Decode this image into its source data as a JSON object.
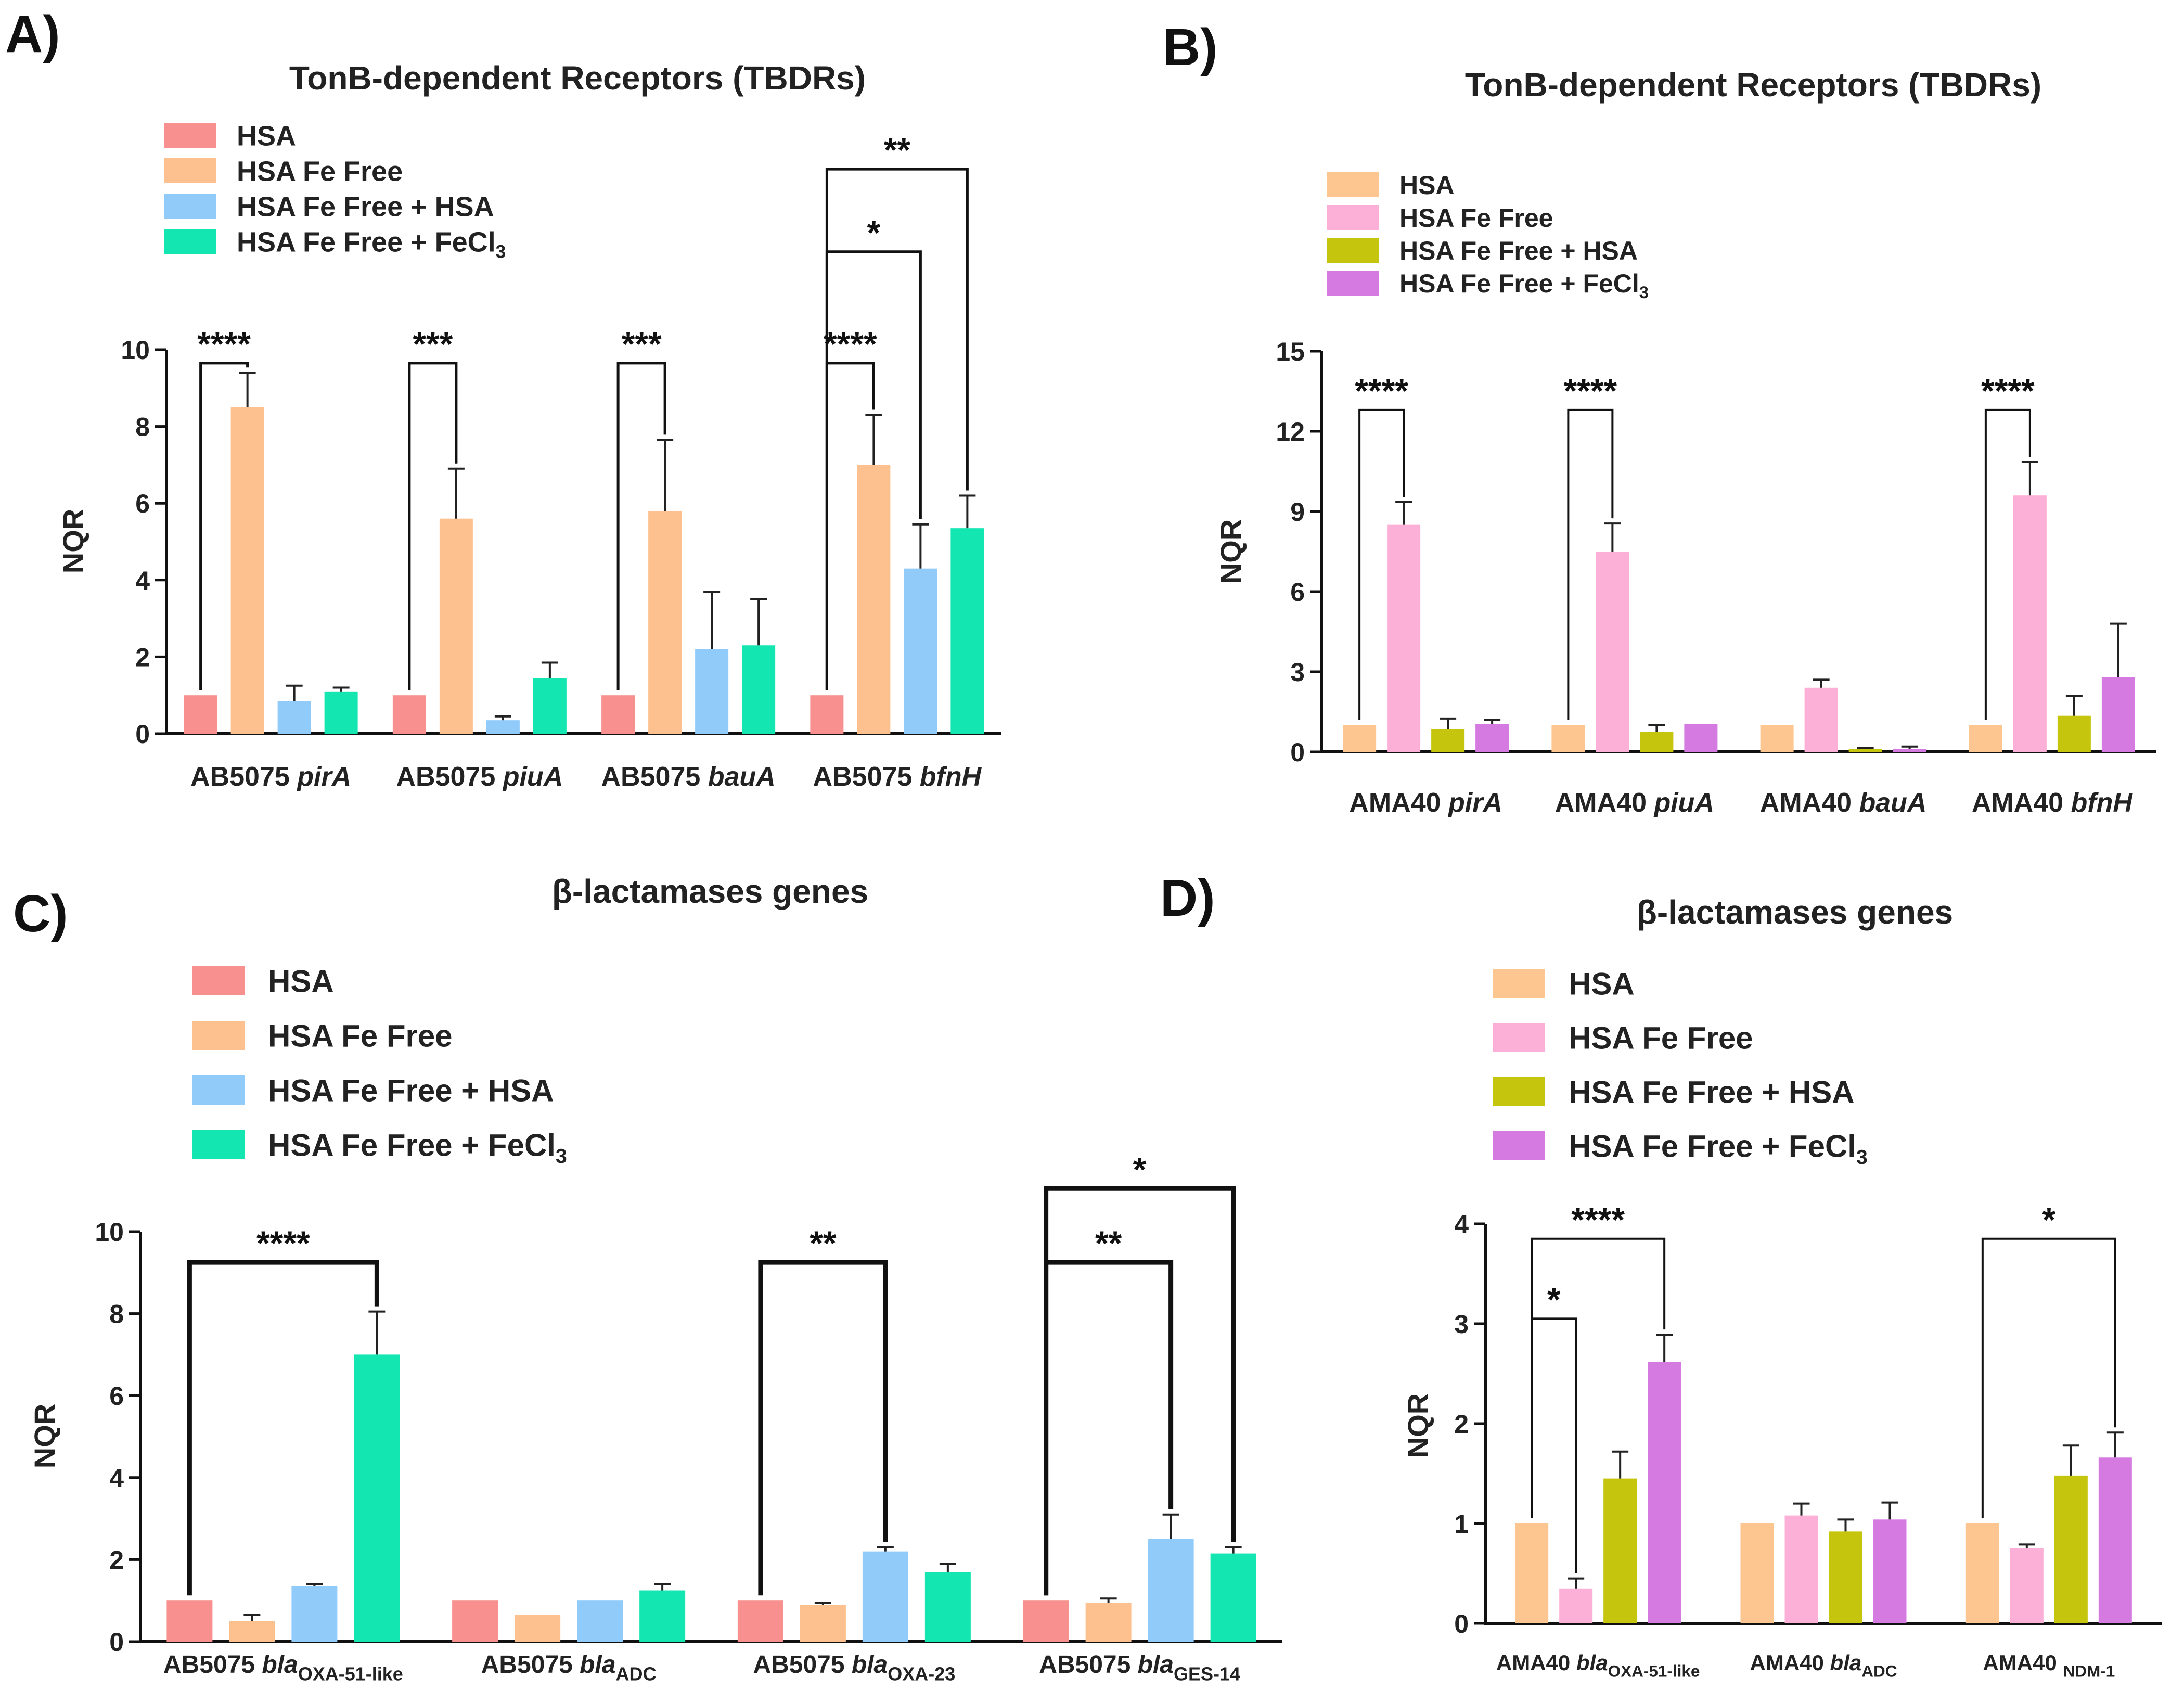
{
  "chart_data": [
    {
      "panel": "A)",
      "type": "bar",
      "title": "TonB-dependent Receptors (TBDRs)",
      "ylabel": "NQR",
      "ylim": [
        0,
        10
      ],
      "yticks": [
        "0",
        "2",
        "4",
        "6",
        "8",
        "10"
      ],
      "categories": [
        {
          "prefix": "AB5075 ",
          "gene": "pirA",
          "sub": ""
        },
        {
          "prefix": "AB5075 ",
          "gene": "piuA",
          "sub": ""
        },
        {
          "prefix": "AB5075 ",
          "gene": "bauA",
          "sub": ""
        },
        {
          "prefix": "AB5075 ",
          "gene": "bfnH",
          "sub": ""
        }
      ],
      "legend": [
        "HSA",
        "HSA Fe Free",
        "HSA Fe Free + HSA",
        "HSA Fe Free + FeCl"
      ],
      "legend_sub": "3",
      "colors": [
        "#F7908E",
        "#FDC08F",
        "#91CBFA",
        "#14E6B1"
      ],
      "series": [
        {
          "name": "HSA",
          "values": [
            1.0,
            1.0,
            1.0,
            1.0
          ],
          "errors": [
            0,
            0,
            0,
            0
          ]
        },
        {
          "name": "HSA Fe Free",
          "values": [
            8.5,
            5.6,
            5.8,
            7.0
          ],
          "errors": [
            0.9,
            1.3,
            1.85,
            1.3
          ]
        },
        {
          "name": "HSA Fe Free + HSA",
          "values": [
            0.85,
            0.35,
            2.2,
            4.3
          ],
          "errors": [
            0.4,
            0.1,
            1.5,
            1.15
          ]
        },
        {
          "name": "HSA Fe Free + FeCl3",
          "values": [
            1.1,
            1.45,
            2.3,
            5.35
          ],
          "errors": [
            0.1,
            0.4,
            1.2,
            0.85
          ]
        }
      ],
      "significance": [
        {
          "cat": 0,
          "from": 0,
          "to": 1,
          "label": "****",
          "level": 9.65
        },
        {
          "cat": 1,
          "from": 0,
          "to": 1,
          "label": "***",
          "level": 9.65
        },
        {
          "cat": 2,
          "from": 0,
          "to": 1,
          "label": "***",
          "level": 9.65
        },
        {
          "cat": 3,
          "from": 0,
          "to": 1,
          "label": "****",
          "level": 9.65
        },
        {
          "cat": 3,
          "from": 0,
          "to": 2,
          "label": "*",
          "level": 12.55
        },
        {
          "cat": 3,
          "from": 0,
          "to": 3,
          "label": "**",
          "level": 14.7
        }
      ]
    },
    {
      "panel": "B)",
      "type": "bar",
      "title": "TonB-dependent Receptors (TBDRs)",
      "ylabel": "NQR",
      "ylim": [
        0,
        15
      ],
      "yticks": [
        "0",
        "3",
        "6",
        "9",
        "12",
        "15"
      ],
      "categories": [
        {
          "prefix": "AMA40 ",
          "gene": "pirA",
          "sub": ""
        },
        {
          "prefix": "AMA40 ",
          "gene": "piuA",
          "sub": ""
        },
        {
          "prefix": "AMA40 ",
          "gene": "bauA",
          "sub": ""
        },
        {
          "prefix": "AMA40 ",
          "gene": "bfnH",
          "sub": ""
        }
      ],
      "legend": [
        "HSA",
        "HSA Fe Free",
        "HSA Fe Free + HSA",
        "HSA Fe Free + FeCl"
      ],
      "legend_sub": "3",
      "colors": [
        "#FDC590",
        "#FDB0D7",
        "#C5C50E",
        "#D57AE0"
      ],
      "series": [
        {
          "name": "HSA",
          "values": [
            1.0,
            1.0,
            1.0,
            1.0
          ],
          "errors": [
            0,
            0,
            0,
            0
          ]
        },
        {
          "name": "HSA Fe Free",
          "values": [
            8.5,
            7.5,
            2.4,
            9.6
          ],
          "errors": [
            0.85,
            1.05,
            0.3,
            1.25
          ]
        },
        {
          "name": "HSA Fe Free + HSA",
          "values": [
            0.85,
            0.75,
            0.1,
            1.35
          ],
          "errors": [
            0.4,
            0.25,
            0.05,
            0.75
          ]
        },
        {
          "name": "HSA Fe Free + FeCl3",
          "values": [
            1.05,
            1.05,
            0.1,
            2.8
          ],
          "errors": [
            0.15,
            0,
            0.1,
            2.0
          ]
        }
      ],
      "significance": [
        {
          "cat": 0,
          "from": 0,
          "to": 1,
          "label": "****",
          "level": 12.8
        },
        {
          "cat": 1,
          "from": 0,
          "to": 1,
          "label": "****",
          "level": 12.8
        },
        {
          "cat": 3,
          "from": 0,
          "to": 1,
          "label": "****",
          "level": 12.8
        }
      ]
    },
    {
      "panel": "C)",
      "type": "bar",
      "title": "β-lactamases genes",
      "ylabel": "NQR",
      "ylim": [
        0,
        10
      ],
      "yticks": [
        "0",
        "2",
        "4",
        "6",
        "8",
        "10"
      ],
      "categories": [
        {
          "prefix": "AB5075 ",
          "gene": "bla",
          "sub": "OXA-51-like"
        },
        {
          "prefix": "AB5075 ",
          "gene": "bla",
          "sub": "ADC"
        },
        {
          "prefix": "AB5075 ",
          "gene": "bla",
          "sub": "OXA-23"
        },
        {
          "prefix": "AB5075 ",
          "gene": "bla",
          "sub": "GES-14"
        }
      ],
      "legend": [
        "HSA",
        "HSA Fe Free",
        "HSA Fe Free + HSA",
        "HSA Fe Free + FeCl"
      ],
      "legend_sub": "3",
      "colors": [
        "#F7908E",
        "#FDC08F",
        "#91CBFA",
        "#14E6B1"
      ],
      "series": [
        {
          "name": "HSA",
          "values": [
            1.0,
            1.0,
            1.0,
            1.0
          ],
          "errors": [
            0,
            0,
            0,
            0
          ]
        },
        {
          "name": "HSA Fe Free",
          "values": [
            0.5,
            0.65,
            0.9,
            0.95
          ],
          "errors": [
            0.15,
            0,
            0.05,
            0.1
          ]
        },
        {
          "name": "HSA Fe Free + HSA",
          "values": [
            1.35,
            1.0,
            2.2,
            2.5
          ],
          "errors": [
            0.05,
            0,
            0.1,
            0.6
          ]
        },
        {
          "name": "HSA Fe Free + FeCl3",
          "values": [
            7.0,
            1.25,
            1.7,
            2.15
          ],
          "errors": [
            1.05,
            0.15,
            0.2,
            0.15
          ]
        }
      ],
      "significance": [
        {
          "cat": 0,
          "from": 0,
          "to": 3,
          "label": "****",
          "level": 9.25
        },
        {
          "cat": 2,
          "from": 0,
          "to": 2,
          "label": "**",
          "level": 9.25
        },
        {
          "cat": 3,
          "from": 0,
          "to": 2,
          "label": "**",
          "level": 9.25
        },
        {
          "cat": 3,
          "from": 0,
          "to": 3,
          "label": "*",
          "level": 11.05
        }
      ]
    },
    {
      "panel": "D)",
      "type": "bar",
      "title": "β-lactamases genes",
      "ylabel": "NQR",
      "ylim": [
        0,
        4
      ],
      "yticks": [
        "0",
        "1",
        "2",
        "3",
        "4"
      ],
      "categories": [
        {
          "prefix": "AMA40 ",
          "gene": "bla",
          "sub": "OXA-51-like"
        },
        {
          "prefix": "AMA40 ",
          "gene": "bla",
          "sub": "ADC"
        },
        {
          "prefix": "AMA40 ",
          "gene": "",
          "sub": "NDM-1"
        }
      ],
      "legend": [
        "HSA",
        "HSA Fe Free",
        "HSA Fe Free + HSA",
        "HSA Fe Free + FeCl"
      ],
      "legend_sub": "3",
      "colors": [
        "#FDC590",
        "#FDB0D7",
        "#C5C50E",
        "#D57AE0"
      ],
      "series": [
        {
          "name": "HSA",
          "values": [
            1.0,
            1.0,
            1.0
          ],
          "errors": [
            0,
            0,
            0
          ]
        },
        {
          "name": "HSA Fe Free",
          "values": [
            0.35,
            1.08,
            0.75
          ],
          "errors": [
            0.1,
            0.12,
            0.04
          ]
        },
        {
          "name": "HSA Fe Free + HSA",
          "values": [
            1.45,
            0.92,
            1.48
          ],
          "errors": [
            0.27,
            0.12,
            0.3
          ]
        },
        {
          "name": "HSA Fe Free + FeCl3",
          "values": [
            2.62,
            1.04,
            1.66
          ],
          "errors": [
            0.27,
            0.17,
            0.25
          ]
        }
      ],
      "significance": [
        {
          "cat": 0,
          "from": 0,
          "to": 1,
          "label": "*",
          "level": 3.05
        },
        {
          "cat": 0,
          "from": 0,
          "to": 3,
          "label": "****",
          "level": 3.85
        },
        {
          "cat": 2,
          "from": 0,
          "to": 3,
          "label": "*",
          "level": 3.85
        }
      ]
    }
  ]
}
